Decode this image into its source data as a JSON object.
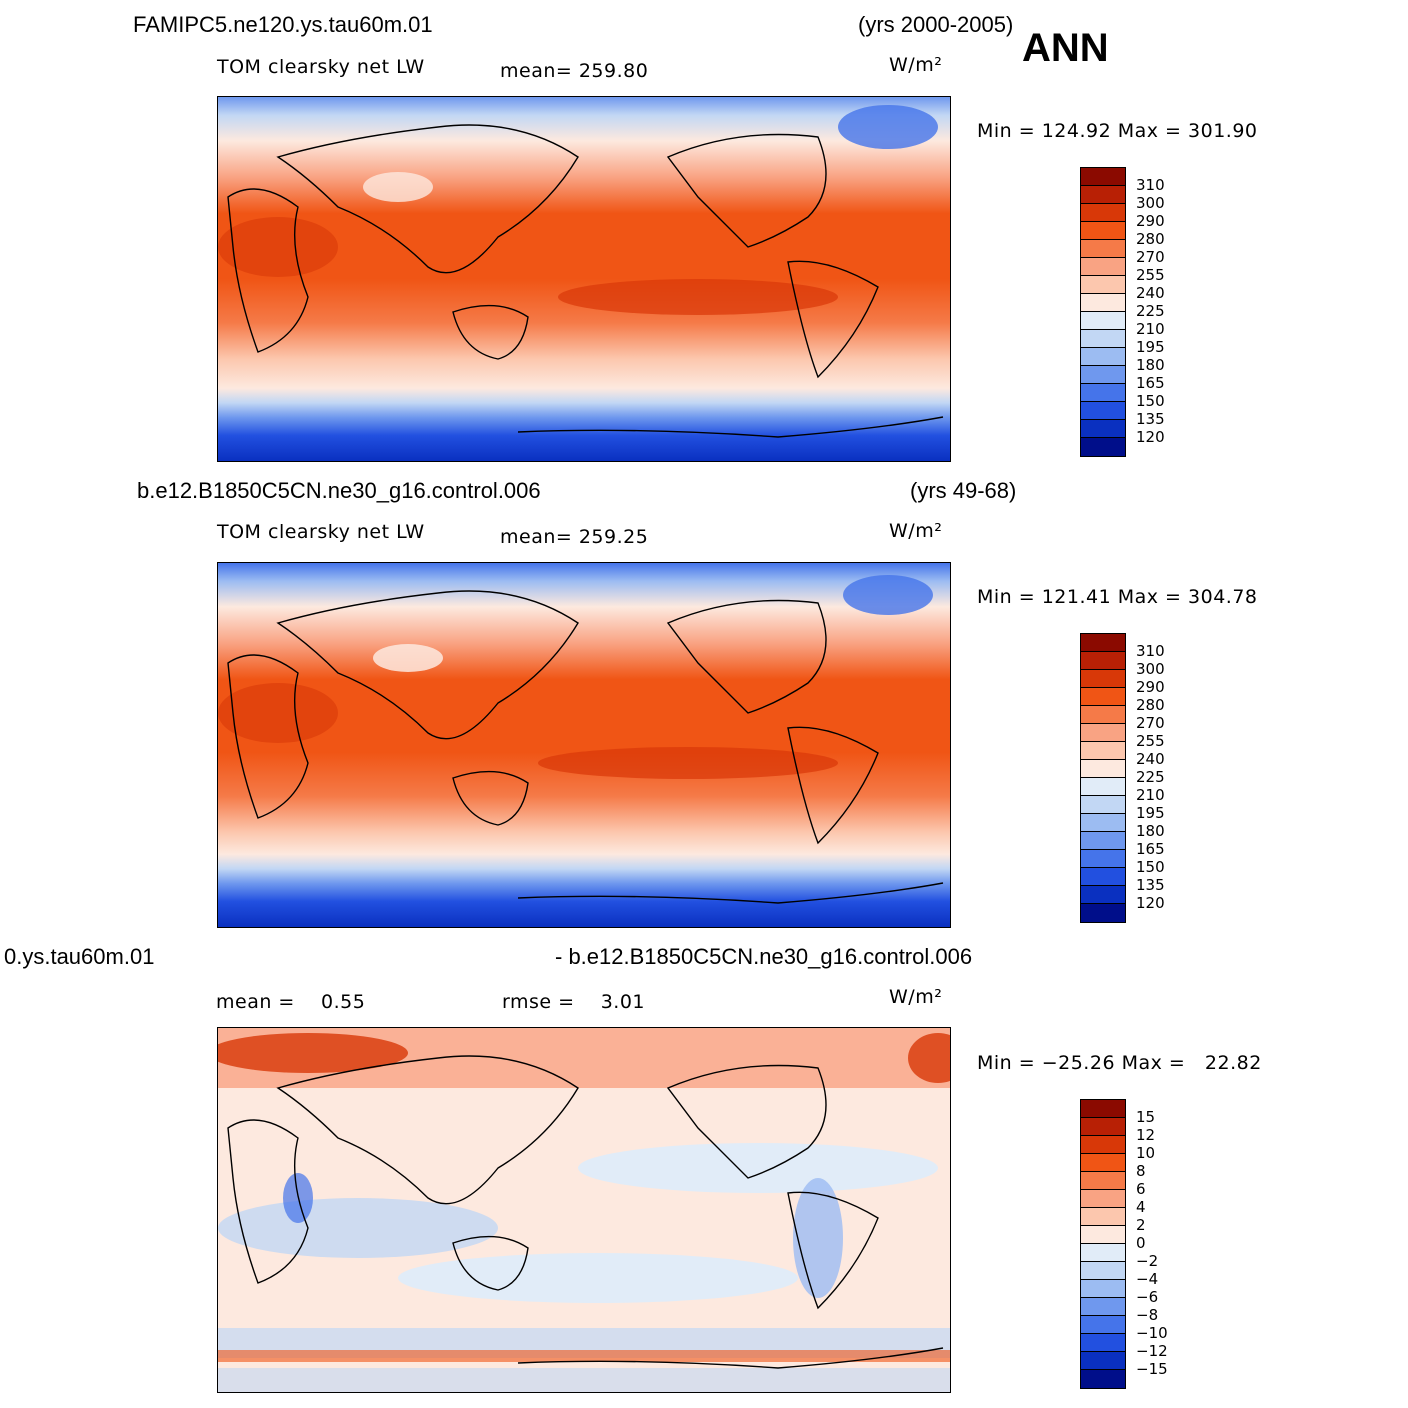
{
  "season": "ANN",
  "panels": [
    {
      "case_label": "FAMIPC5.ne120.ys.tau60m.01",
      "years_label": "(yrs 2000-2005)",
      "left_label": "TOM clearsky net LW",
      "mean_label": "mean= 259.80",
      "units": "W/m²",
      "minmax": "Min = 124.92 Max = 301.90"
    },
    {
      "case_label": "b.e12.B1850C5CN.ne30_g16.control.006",
      "years_label": "(yrs 49-68)",
      "left_label": "TOM clearsky net LW",
      "mean_label": "mean= 259.25",
      "units": "W/m²",
      "minmax": "Min = 121.41 Max = 304.78"
    },
    {
      "case_label": "0.ys.tau60m.01",
      "years_label": "- b.e12.B1850C5CN.ne30_g16.control.006",
      "left_label": "mean =    0.55",
      "mean_label": "rmse =    3.01",
      "units": "W/m²",
      "minmax": "Min = −25.26 Max =   22.82"
    }
  ],
  "colorbars": {
    "absolute": {
      "labels": [
        "310",
        "300",
        "290",
        "280",
        "270",
        "255",
        "240",
        "225",
        "210",
        "195",
        "180",
        "165",
        "150",
        "135",
        "120"
      ],
      "colors": [
        "#8b0a00",
        "#b82005",
        "#d83808",
        "#f05515",
        "#f57a48",
        "#f9a383",
        "#fcc7ae",
        "#fde9df",
        "#e1ecf8",
        "#c2d7f4",
        "#9cbcf2",
        "#6f98ee",
        "#4574ea",
        "#2250e0",
        "#0a30c0",
        "#000e8a"
      ]
    },
    "difference": {
      "labels": [
        "15",
        "12",
        "10",
        "8",
        "6",
        "4",
        "2",
        "0",
        "−2",
        "−4",
        "−6",
        "−8",
        "−10",
        "−12",
        "−15"
      ],
      "colors": [
        "#8b0a00",
        "#b82005",
        "#d83808",
        "#f05515",
        "#f57a48",
        "#f9a383",
        "#fcc7ae",
        "#fde9df",
        "#e1ecf8",
        "#c2d7f4",
        "#9cbcf2",
        "#6f98ee",
        "#4574ea",
        "#2250e0",
        "#0a30c0",
        "#000e8a"
      ]
    }
  }
}
